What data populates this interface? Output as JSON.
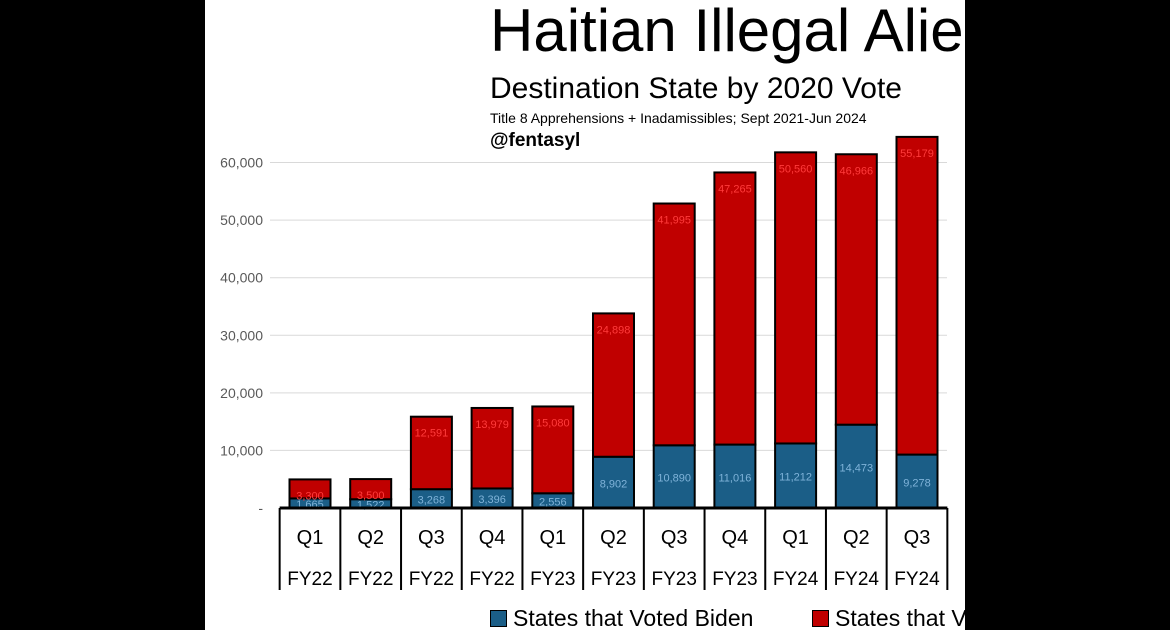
{
  "chart_data": {
    "type": "bar",
    "stacked": true,
    "title": "Haitian Illegal Aliens",
    "subtitle": "Destination State by 2020 Vote",
    "note": "Title 8 Apprehensions + Inadamissibles; Sept 2021-Jun 2024",
    "handle": "@fentasyl",
    "categories": [
      {
        "quarter": "Q1",
        "fy": "FY22"
      },
      {
        "quarter": "Q2",
        "fy": "FY22"
      },
      {
        "quarter": "Q3",
        "fy": "FY22"
      },
      {
        "quarter": "Q4",
        "fy": "FY22"
      },
      {
        "quarter": "Q1",
        "fy": "FY23"
      },
      {
        "quarter": "Q2",
        "fy": "FY23"
      },
      {
        "quarter": "Q3",
        "fy": "FY23"
      },
      {
        "quarter": "Q4",
        "fy": "FY23"
      },
      {
        "quarter": "Q1",
        "fy": "FY24"
      },
      {
        "quarter": "Q2",
        "fy": "FY24"
      },
      {
        "quarter": "Q3",
        "fy": "FY24"
      }
    ],
    "series": [
      {
        "name": "States that Voted Biden",
        "color": "#1b5e87",
        "label_color": "#7fb3d9",
        "values": [
          1665,
          1522,
          3268,
          3396,
          2556,
          8902,
          10890,
          11016,
          11212,
          14473,
          9278
        ],
        "labels": [
          "1,665",
          "1,522",
          "3,268",
          "3,396",
          "2,556",
          "8,902",
          "10,890",
          "11,016",
          "11,212",
          "14,473",
          "9,278"
        ]
      },
      {
        "name": "States that Voted Trump",
        "color": "#c00000",
        "label_color": "#ff3b3b",
        "values": [
          3300,
          3500,
          12591,
          13979,
          15080,
          24898,
          41995,
          47265,
          50560,
          46966,
          55179
        ],
        "labels": [
          "3,300",
          "3,500",
          "12,591",
          "13,979",
          "15,080",
          "24,898",
          "41,995",
          "47,265",
          "50,560",
          "46,966",
          "55,179"
        ]
      }
    ],
    "y_ticks": [
      {
        "value": 0,
        "label": "-"
      },
      {
        "value": 10000,
        "label": "10,000"
      },
      {
        "value": 20000,
        "label": "20,000"
      },
      {
        "value": 30000,
        "label": "30,000"
      },
      {
        "value": 40000,
        "label": "40,000"
      },
      {
        "value": 50000,
        "label": "50,000"
      },
      {
        "value": 60000,
        "label": "60,000"
      }
    ],
    "ylim": [
      0,
      66000
    ],
    "grid": true,
    "legend_position": "bottom"
  },
  "colors": {
    "background": "#000000",
    "panel": "#ffffff",
    "gridline": "#d9d9d9"
  }
}
